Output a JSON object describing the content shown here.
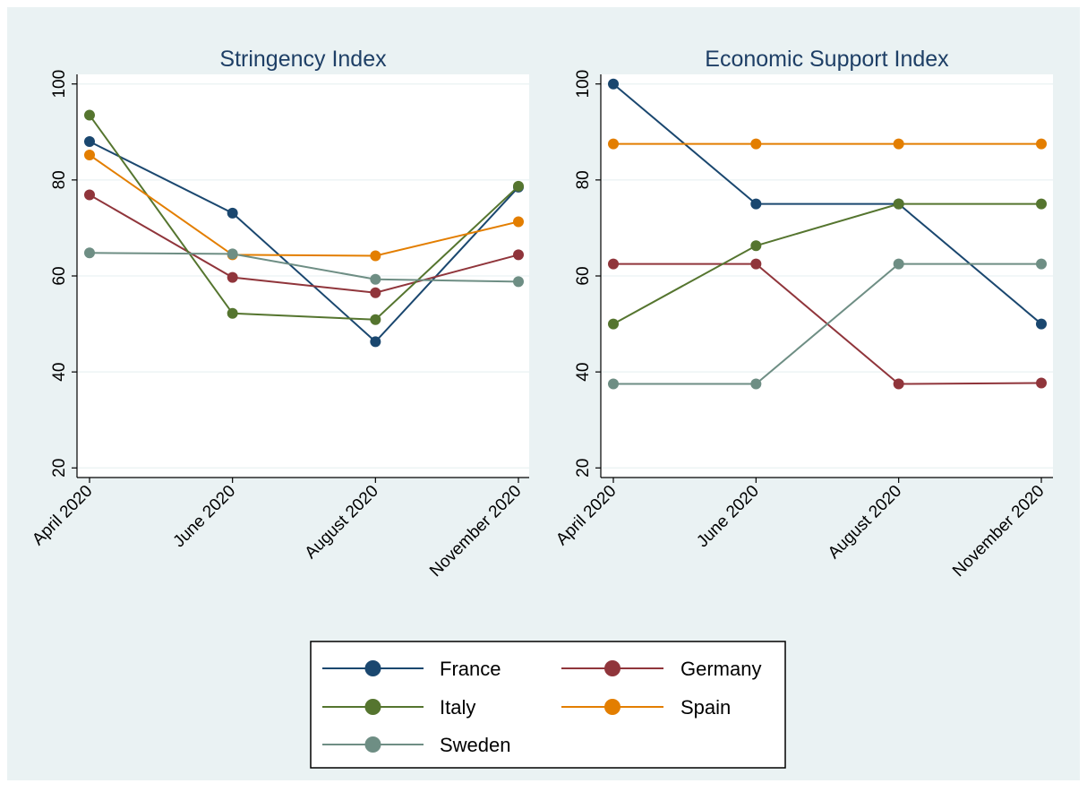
{
  "chart_data": [
    {
      "type": "line",
      "title": "Stringency Index",
      "xlabel": "",
      "ylabel": "",
      "categories": [
        "April 2020",
        "June 2020",
        "August 2020",
        "November 2020"
      ],
      "ylim": [
        18,
        102
      ],
      "yticks": [
        20,
        40,
        60,
        80,
        100
      ],
      "grid": true,
      "series": [
        {
          "name": "France",
          "color": "#1a476f",
          "values": [
            88.0,
            73.1,
            46.3,
            78.5
          ]
        },
        {
          "name": "Germany",
          "color": "#90353b",
          "values": [
            76.9,
            59.7,
            56.5,
            64.4
          ]
        },
        {
          "name": "Italy",
          "color": "#55752f",
          "values": [
            93.5,
            52.2,
            50.9,
            78.7
          ]
        },
        {
          "name": "Spain",
          "color": "#e37e00",
          "values": [
            85.2,
            64.4,
            64.2,
            71.3
          ]
        },
        {
          "name": "Sweden",
          "color": "#6e8e84",
          "values": [
            64.8,
            64.6,
            59.3,
            58.8
          ]
        }
      ]
    },
    {
      "type": "line",
      "title": "Economic Support Index",
      "xlabel": "",
      "ylabel": "",
      "categories": [
        "April 2020",
        "June 2020",
        "August 2020",
        "November 2020"
      ],
      "ylim": [
        18,
        102
      ],
      "yticks": [
        20,
        40,
        60,
        80,
        100
      ],
      "grid": true,
      "series": [
        {
          "name": "France",
          "color": "#1a476f",
          "values": [
            100.0,
            75.0,
            75.0,
            50.0
          ]
        },
        {
          "name": "Germany",
          "color": "#90353b",
          "values": [
            62.5,
            62.5,
            37.5,
            37.7
          ]
        },
        {
          "name": "Italy",
          "color": "#55752f",
          "values": [
            50.0,
            66.3,
            75.0,
            75.0
          ]
        },
        {
          "name": "Spain",
          "color": "#e37e00",
          "values": [
            87.5,
            87.5,
            87.5,
            87.5
          ]
        },
        {
          "name": "Sweden",
          "color": "#6e8e84",
          "values": [
            37.5,
            37.5,
            62.5,
            62.5
          ]
        }
      ]
    }
  ],
  "legend": {
    "placement": "bottom-center",
    "entries": [
      {
        "name": "France",
        "color": "#1a476f"
      },
      {
        "name": "Germany",
        "color": "#90353b"
      },
      {
        "name": "Italy",
        "color": "#55752f"
      },
      {
        "name": "Spain",
        "color": "#e37e00"
      },
      {
        "name": "Sweden",
        "color": "#6e8e84"
      }
    ]
  },
  "colors": {
    "background": "#eaf2f3",
    "plot_background": "#ffffff",
    "grid": "#eaf2f3",
    "axis": "#000000",
    "title": "#1e3f66"
  }
}
